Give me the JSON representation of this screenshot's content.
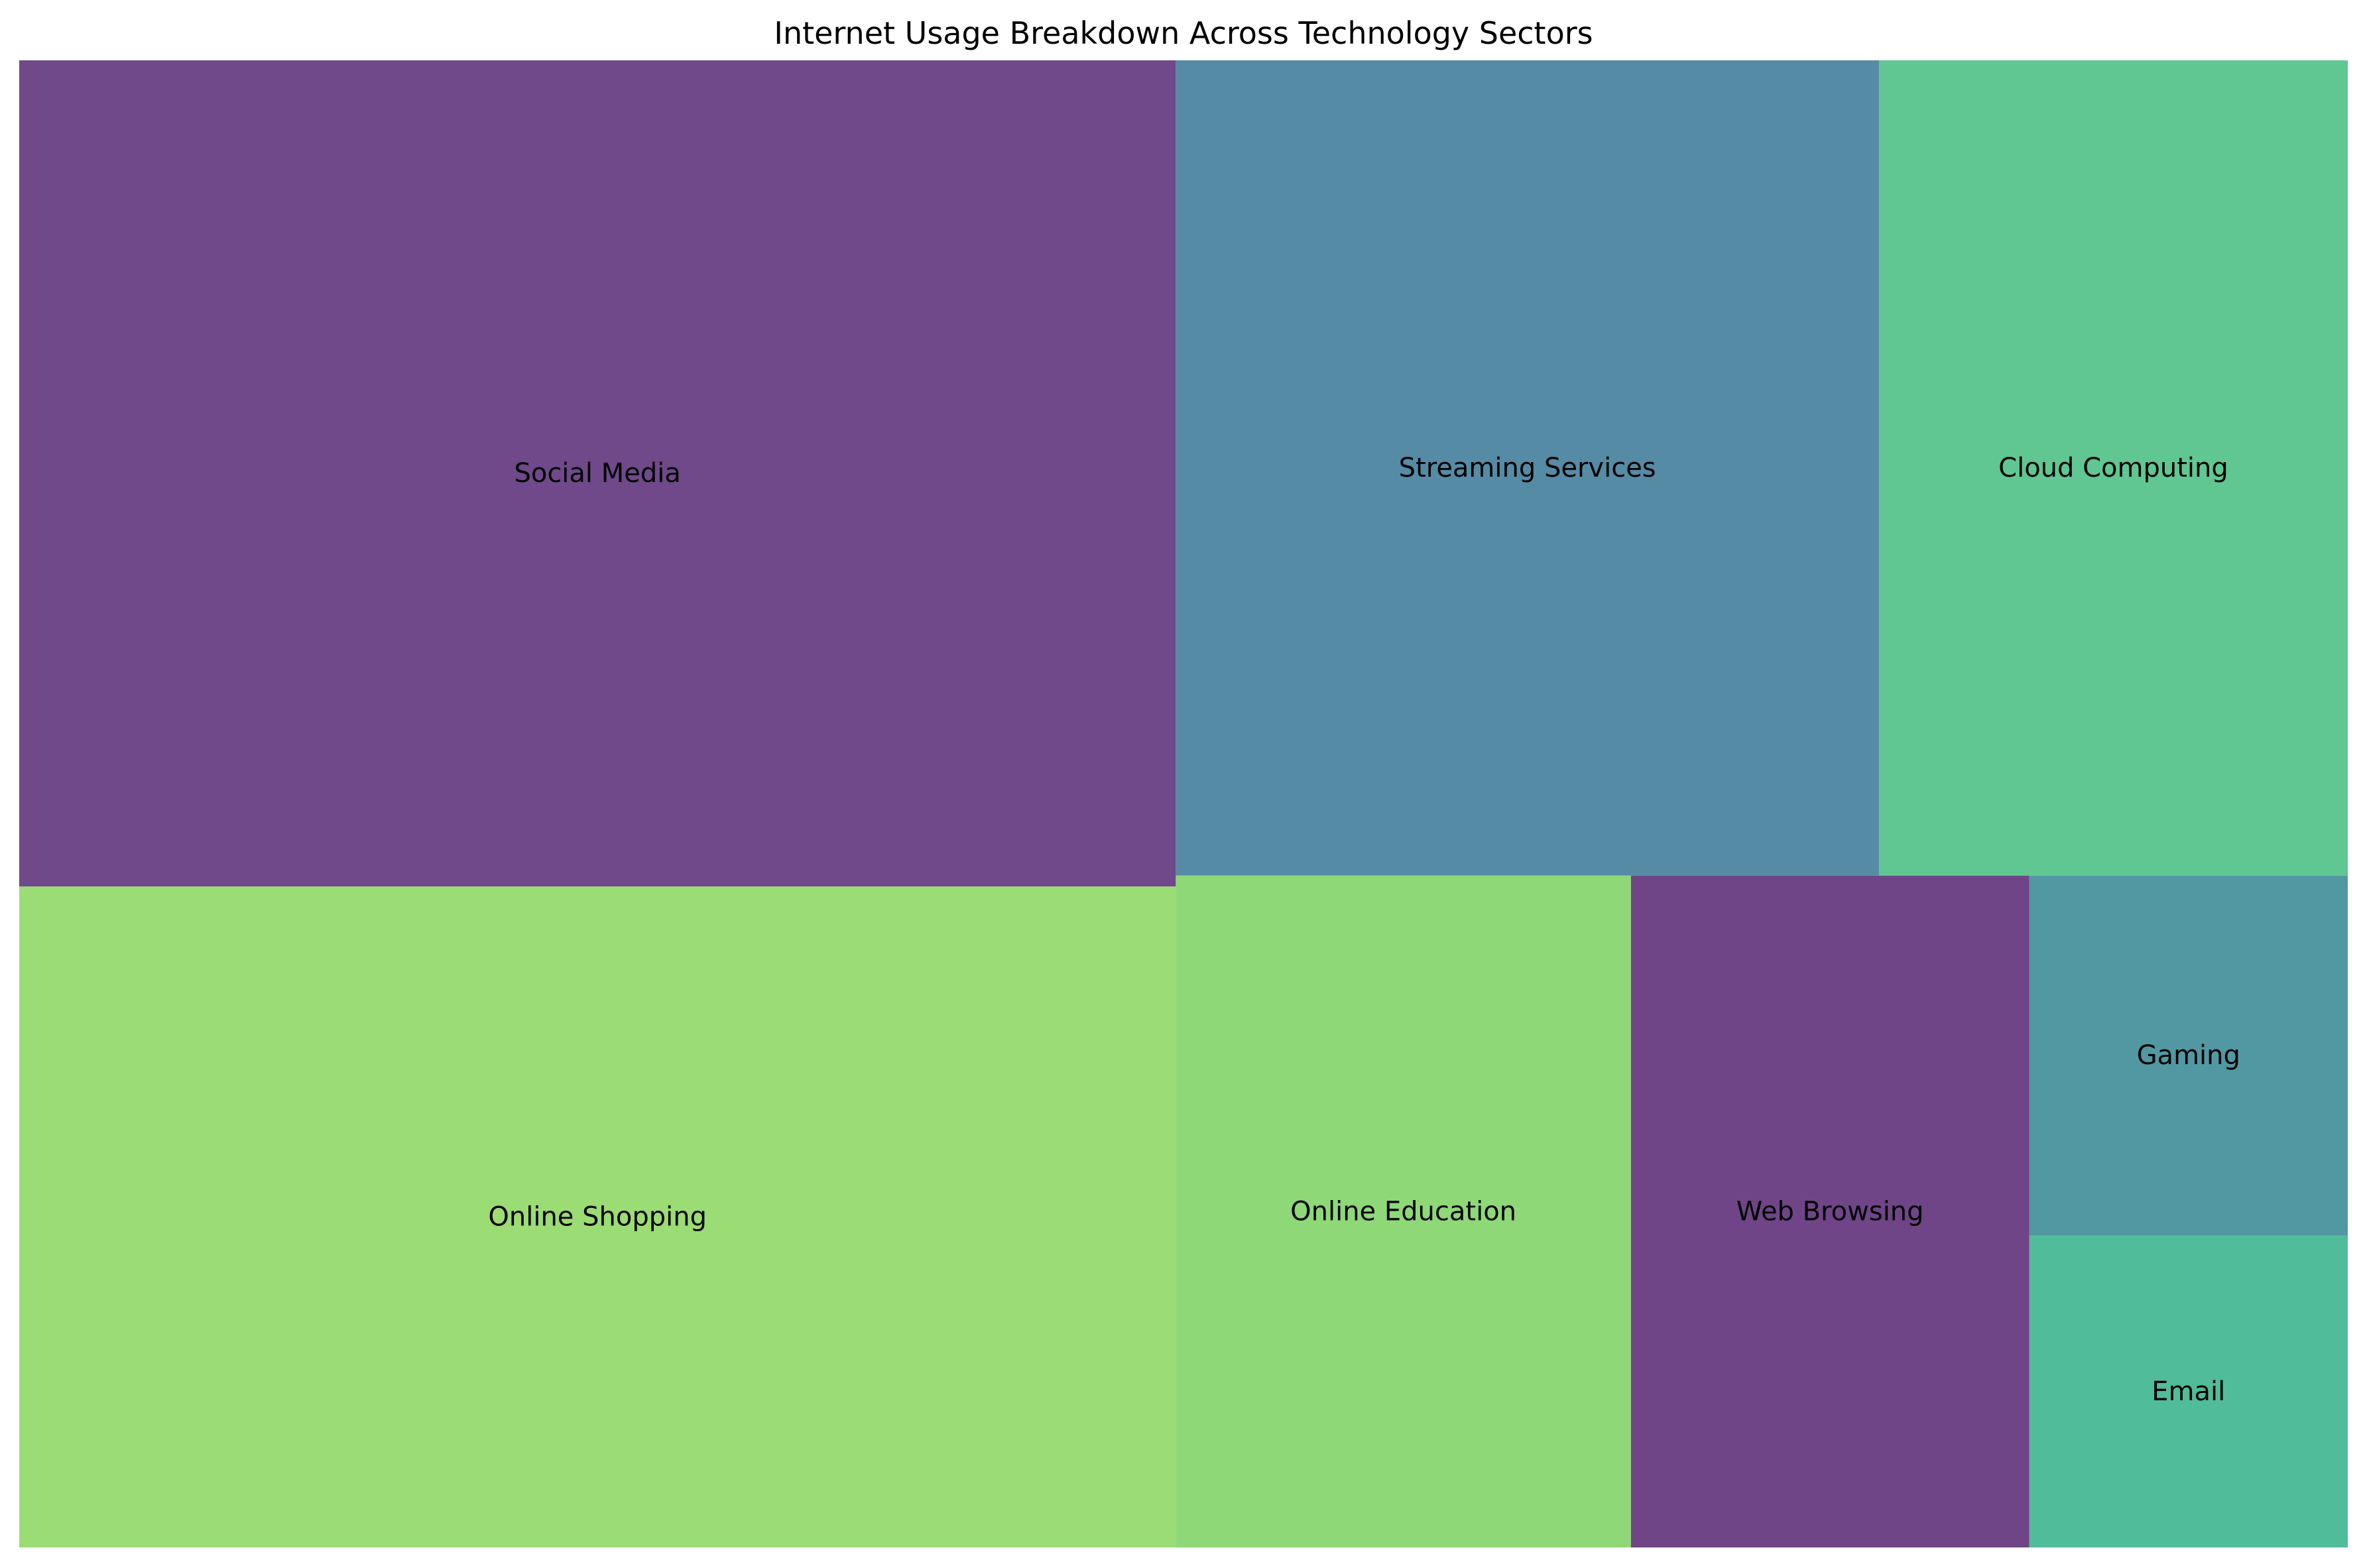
{
  "chart_data": {
    "type": "treemap",
    "title": "Internet Usage Breakdown Across Technology Sectors",
    "categories": [
      "Social Media",
      "Online Shopping",
      "Streaming Services",
      "Cloud Computing",
      "Online Education",
      "Web Browsing",
      "Gaming",
      "Email"
    ],
    "values": [
      25,
      20,
      15,
      10,
      8,
      7,
      3,
      2.6
    ],
    "colors": [
      "#6f498a",
      "#9bdc74",
      "#568ba5",
      "#60c792",
      "#8ed878",
      "#6f4587",
      "#5298a3",
      "#51bc9a"
    ],
    "legend": "none",
    "grid": false
  }
}
